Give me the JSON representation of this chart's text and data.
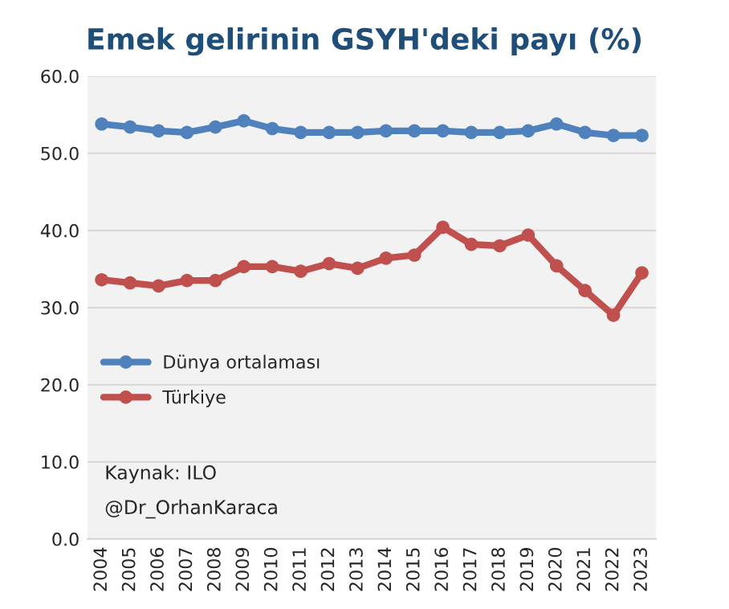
{
  "chart_data": {
    "type": "line",
    "title": "Emek gelirinin GSYH'deki payı (%)",
    "categories": [
      "2004",
      "2005",
      "2006",
      "2007",
      "2008",
      "2009",
      "2010",
      "2011",
      "2012",
      "2013",
      "2014",
      "2015",
      "2016",
      "2017",
      "2018",
      "2019",
      "2020",
      "2021",
      "2022",
      "2023"
    ],
    "series": [
      {
        "name": "Dünya ortalaması",
        "color": "#4f81bd",
        "values": [
          53.8,
          53.4,
          52.9,
          52.7,
          53.4,
          54.2,
          53.2,
          52.7,
          52.7,
          52.7,
          52.9,
          52.9,
          52.9,
          52.7,
          52.7,
          52.9,
          53.8,
          52.7,
          52.3,
          52.3
        ]
      },
      {
        "name": "Türkiye",
        "color": "#c0504d",
        "values": [
          33.6,
          33.2,
          32.8,
          33.5,
          33.5,
          35.3,
          35.3,
          34.7,
          35.7,
          35.1,
          36.4,
          36.8,
          40.4,
          38.2,
          38.0,
          39.4,
          35.4,
          32.2,
          29.0,
          34.5
        ]
      }
    ],
    "ylim": [
      0,
      60
    ],
    "yticks": [
      {
        "value": 0,
        "label": "0.0"
      },
      {
        "value": 10,
        "label": "10.0"
      },
      {
        "value": 20,
        "label": "20.0"
      },
      {
        "value": 30,
        "label": "30.0"
      },
      {
        "value": 40,
        "label": "40.0"
      },
      {
        "value": 50,
        "label": "50.0"
      },
      {
        "value": 60,
        "label": "60.0"
      }
    ],
    "grid": "y",
    "legend": "left",
    "marker": "circle",
    "line_style": "solid",
    "annotations": [
      "Kaynak: ILO",
      "@Dr_OrhanKaraca"
    ]
  }
}
